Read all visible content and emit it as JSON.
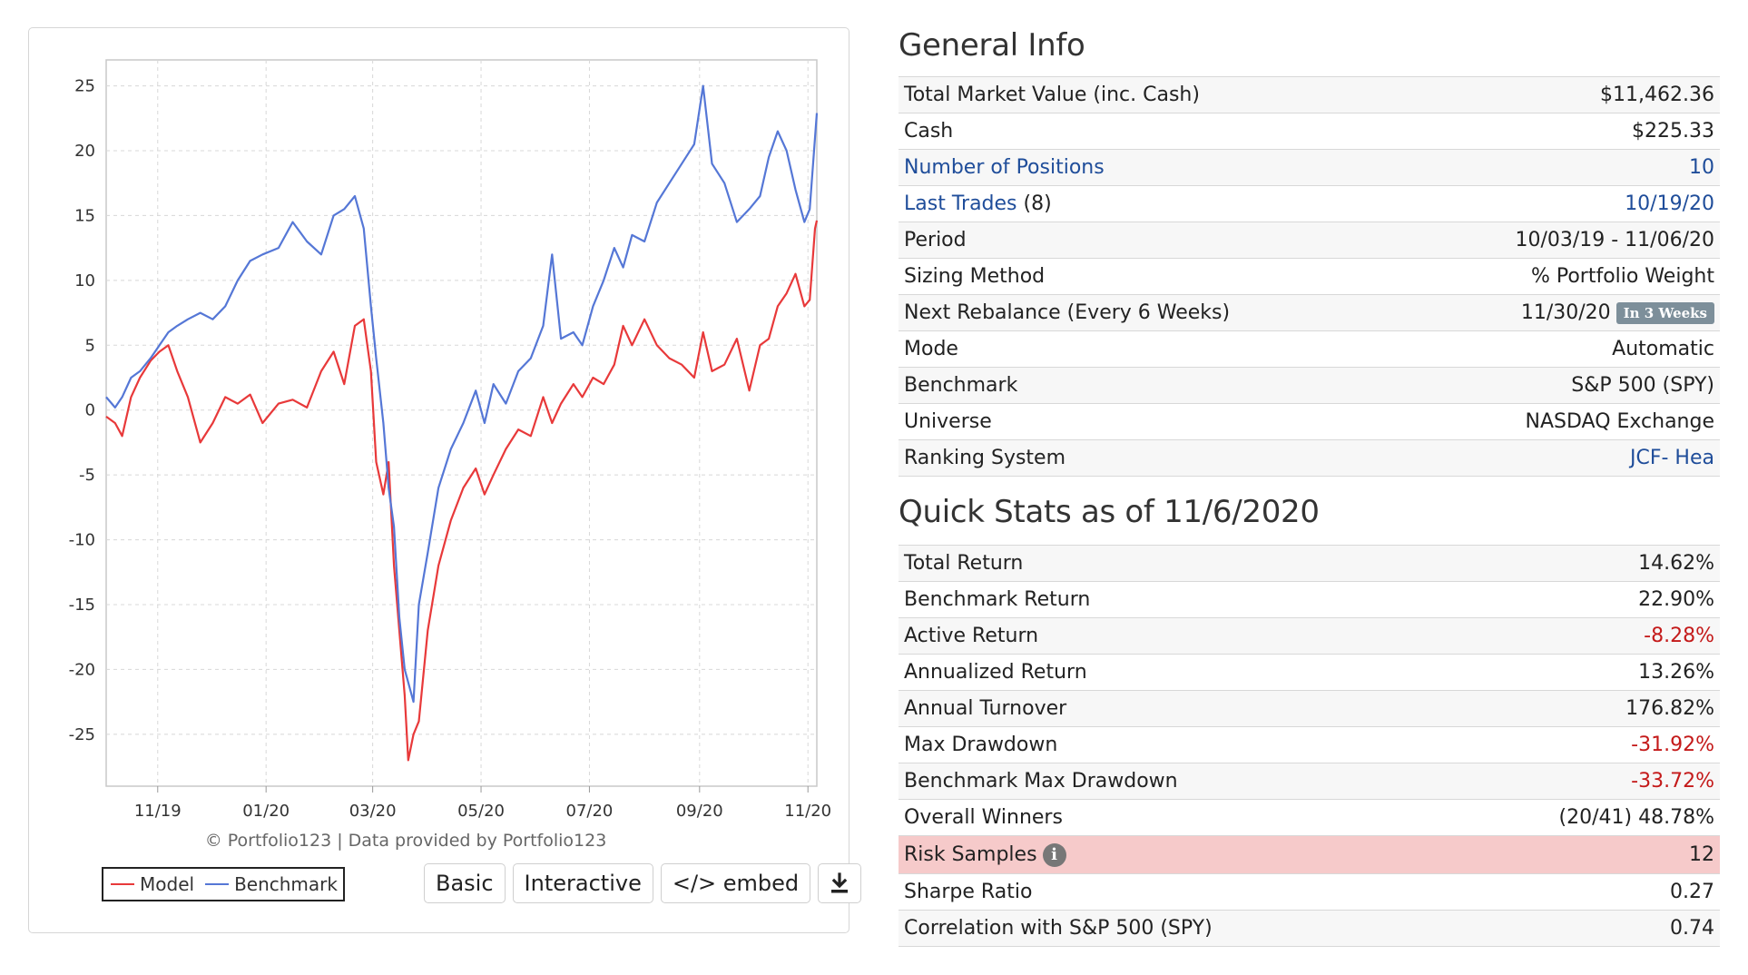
{
  "chart_data": {
    "type": "line",
    "ylim": [
      -29,
      27
    ],
    "y_ticks": [
      25,
      20,
      15,
      10,
      5,
      0,
      -5,
      -10,
      -15,
      -20,
      -25
    ],
    "x_ticks": [
      "11/19",
      "01/20",
      "03/20",
      "05/20",
      "07/20",
      "09/20",
      "11/20"
    ],
    "x_range": [
      "2019-10-03",
      "2020-11-06"
    ],
    "grid": true,
    "legend_position": "bottom-left",
    "series": [
      {
        "name": "Model",
        "color": "#e8393a",
        "points": [
          [
            "2019-10-03",
            -0.5
          ],
          [
            "2019-10-08",
            -1.0
          ],
          [
            "2019-10-12",
            -2.0
          ],
          [
            "2019-10-17",
            1.0
          ],
          [
            "2019-10-22",
            2.5
          ],
          [
            "2019-10-28",
            3.8
          ],
          [
            "2019-11-02",
            4.5
          ],
          [
            "2019-11-07",
            5.0
          ],
          [
            "2019-11-12",
            3.0
          ],
          [
            "2019-11-18",
            1.0
          ],
          [
            "2019-11-25",
            -2.5
          ],
          [
            "2019-12-02",
            -1.0
          ],
          [
            "2019-12-09",
            1.0
          ],
          [
            "2019-12-16",
            0.5
          ],
          [
            "2019-12-23",
            1.2
          ],
          [
            "2019-12-30",
            -1.0
          ],
          [
            "2020-01-08",
            0.5
          ],
          [
            "2020-01-16",
            0.8
          ],
          [
            "2020-01-24",
            0.2
          ],
          [
            "2020-02-01",
            3.0
          ],
          [
            "2020-02-08",
            4.5
          ],
          [
            "2020-02-14",
            2.0
          ],
          [
            "2020-02-20",
            6.5
          ],
          [
            "2020-02-25",
            7.0
          ],
          [
            "2020-02-29",
            3.0
          ],
          [
            "2020-03-03",
            -4.0
          ],
          [
            "2020-03-07",
            -6.5
          ],
          [
            "2020-03-10",
            -4.0
          ],
          [
            "2020-03-13",
            -12.0
          ],
          [
            "2020-03-16",
            -17.0
          ],
          [
            "2020-03-19",
            -22.0
          ],
          [
            "2020-03-21",
            -27.0
          ],
          [
            "2020-03-24",
            -25.0
          ],
          [
            "2020-03-27",
            -24.0
          ],
          [
            "2020-04-01",
            -17.0
          ],
          [
            "2020-04-07",
            -12.0
          ],
          [
            "2020-04-14",
            -8.5
          ],
          [
            "2020-04-21",
            -6.0
          ],
          [
            "2020-04-28",
            -4.5
          ],
          [
            "2020-05-03",
            -6.5
          ],
          [
            "2020-05-08",
            -5.0
          ],
          [
            "2020-05-15",
            -3.0
          ],
          [
            "2020-05-22",
            -1.5
          ],
          [
            "2020-05-29",
            -2.0
          ],
          [
            "2020-06-05",
            1.0
          ],
          [
            "2020-06-10",
            -1.0
          ],
          [
            "2020-06-15",
            0.5
          ],
          [
            "2020-06-22",
            2.0
          ],
          [
            "2020-06-27",
            1.0
          ],
          [
            "2020-07-03",
            2.5
          ],
          [
            "2020-07-09",
            2.0
          ],
          [
            "2020-07-15",
            3.5
          ],
          [
            "2020-07-20",
            6.5
          ],
          [
            "2020-07-25",
            5.0
          ],
          [
            "2020-08-01",
            7.0
          ],
          [
            "2020-08-08",
            5.0
          ],
          [
            "2020-08-15",
            4.0
          ],
          [
            "2020-08-22",
            3.5
          ],
          [
            "2020-08-29",
            2.5
          ],
          [
            "2020-09-03",
            6.0
          ],
          [
            "2020-09-08",
            3.0
          ],
          [
            "2020-09-15",
            3.5
          ],
          [
            "2020-09-22",
            5.5
          ],
          [
            "2020-09-29",
            1.5
          ],
          [
            "2020-10-05",
            5.0
          ],
          [
            "2020-10-10",
            5.5
          ],
          [
            "2020-10-15",
            8.0
          ],
          [
            "2020-10-20",
            9.0
          ],
          [
            "2020-10-25",
            10.5
          ],
          [
            "2020-10-30",
            8.0
          ],
          [
            "2020-11-02",
            8.5
          ],
          [
            "2020-11-05",
            14.0
          ],
          [
            "2020-11-06",
            14.62
          ]
        ]
      },
      {
        "name": "Benchmark",
        "color": "#5577d6",
        "points": [
          [
            "2019-10-03",
            1.0
          ],
          [
            "2019-10-08",
            0.2
          ],
          [
            "2019-10-12",
            1.0
          ],
          [
            "2019-10-17",
            2.5
          ],
          [
            "2019-10-22",
            3.0
          ],
          [
            "2019-10-28",
            4.0
          ],
          [
            "2019-11-02",
            5.0
          ],
          [
            "2019-11-07",
            6.0
          ],
          [
            "2019-11-12",
            6.5
          ],
          [
            "2019-11-18",
            7.0
          ],
          [
            "2019-11-25",
            7.5
          ],
          [
            "2019-12-02",
            7.0
          ],
          [
            "2019-12-09",
            8.0
          ],
          [
            "2019-12-16",
            10.0
          ],
          [
            "2019-12-23",
            11.5
          ],
          [
            "2019-12-30",
            12.0
          ],
          [
            "2020-01-08",
            12.5
          ],
          [
            "2020-01-16",
            14.5
          ],
          [
            "2020-01-24",
            13.0
          ],
          [
            "2020-02-01",
            12.0
          ],
          [
            "2020-02-08",
            15.0
          ],
          [
            "2020-02-14",
            15.5
          ],
          [
            "2020-02-20",
            16.5
          ],
          [
            "2020-02-25",
            14.0
          ],
          [
            "2020-02-29",
            8.0
          ],
          [
            "2020-03-03",
            4.0
          ],
          [
            "2020-03-07",
            -1.0
          ],
          [
            "2020-03-10",
            -6.0
          ],
          [
            "2020-03-13",
            -9.0
          ],
          [
            "2020-03-16",
            -16.0
          ],
          [
            "2020-03-19",
            -20.0
          ],
          [
            "2020-03-21",
            -21.0
          ],
          [
            "2020-03-24",
            -22.5
          ],
          [
            "2020-03-27",
            -15.0
          ],
          [
            "2020-04-01",
            -11.0
          ],
          [
            "2020-04-07",
            -6.0
          ],
          [
            "2020-04-14",
            -3.0
          ],
          [
            "2020-04-21",
            -1.0
          ],
          [
            "2020-04-28",
            1.5
          ],
          [
            "2020-05-03",
            -1.0
          ],
          [
            "2020-05-08",
            2.0
          ],
          [
            "2020-05-15",
            0.5
          ],
          [
            "2020-05-22",
            3.0
          ],
          [
            "2020-05-29",
            4.0
          ],
          [
            "2020-06-05",
            6.5
          ],
          [
            "2020-06-10",
            12.0
          ],
          [
            "2020-06-15",
            5.5
          ],
          [
            "2020-06-22",
            6.0
          ],
          [
            "2020-06-27",
            5.0
          ],
          [
            "2020-07-03",
            8.0
          ],
          [
            "2020-07-09",
            10.0
          ],
          [
            "2020-07-15",
            12.5
          ],
          [
            "2020-07-20",
            11.0
          ],
          [
            "2020-07-25",
            13.5
          ],
          [
            "2020-08-01",
            13.0
          ],
          [
            "2020-08-08",
            16.0
          ],
          [
            "2020-08-15",
            17.5
          ],
          [
            "2020-08-22",
            19.0
          ],
          [
            "2020-08-29",
            20.5
          ],
          [
            "2020-09-03",
            25.0
          ],
          [
            "2020-09-08",
            19.0
          ],
          [
            "2020-09-15",
            17.5
          ],
          [
            "2020-09-22",
            14.5
          ],
          [
            "2020-09-29",
            15.5
          ],
          [
            "2020-10-05",
            16.5
          ],
          [
            "2020-10-10",
            19.5
          ],
          [
            "2020-10-15",
            21.5
          ],
          [
            "2020-10-20",
            20.0
          ],
          [
            "2020-10-25",
            17.0
          ],
          [
            "2020-10-30",
            14.5
          ],
          [
            "2020-11-02",
            15.5
          ],
          [
            "2020-11-05",
            21.0
          ],
          [
            "2020-11-06",
            22.9
          ]
        ]
      }
    ]
  },
  "chart_footer": {
    "credit": "© Portfolio123 | Data provided by Portfolio123",
    "legend_model": "Model",
    "legend_benchmark": "Benchmark",
    "buttons": {
      "basic": "Basic",
      "interactive": "Interactive",
      "embed": "</> embed",
      "download_icon": "download-icon"
    }
  },
  "general_info": {
    "title": "General Info",
    "rows": [
      {
        "label": "Total Market Value (inc. Cash)",
        "value": "$11,462.36"
      },
      {
        "label": "Cash",
        "value": "$225.33"
      },
      {
        "label": "Number of Positions",
        "value": "10"
      },
      {
        "label": "Last Trades",
        "label_suffix": " (8)",
        "value": "10/19/20"
      },
      {
        "label": "Period",
        "value": "10/03/19 - 11/06/20"
      },
      {
        "label": "Sizing Method",
        "value": "% Portfolio Weight"
      },
      {
        "label": "Next Rebalance (Every 6 Weeks)",
        "value": "11/30/20",
        "badge": "In 3 Weeks"
      },
      {
        "label": "Mode",
        "value": "Automatic"
      },
      {
        "label": "Benchmark",
        "value": "S&P 500 (SPY)"
      },
      {
        "label": "Universe",
        "value": "NASDAQ Exchange"
      },
      {
        "label": "Ranking System",
        "value": "JCF- Hea"
      }
    ]
  },
  "quick_stats": {
    "title": "Quick Stats as of 11/6/2020",
    "rows": [
      {
        "label": "Total Return",
        "value": "14.62%"
      },
      {
        "label": "Benchmark Return",
        "value": "22.90%"
      },
      {
        "label": "Active Return",
        "value": "-8.28%"
      },
      {
        "label": "Annualized Return",
        "value": "13.26%"
      },
      {
        "label": "Annual Turnover",
        "value": "176.82%"
      },
      {
        "label": "Max Drawdown",
        "value": "-31.92%"
      },
      {
        "label": "Benchmark Max Drawdown",
        "value": "-33.72%"
      },
      {
        "label": "Overall Winners",
        "value": "(20/41) 48.78%"
      },
      {
        "label": "Risk Samples",
        "value": "12",
        "icon": "info-icon"
      },
      {
        "label": "Sharpe Ratio",
        "value": "0.27"
      },
      {
        "label": "Correlation with S&P 500 (SPY)",
        "value": "0.74"
      }
    ]
  },
  "colors": {
    "link": "#1f4d9a",
    "negative": "#c41a1a",
    "highlight_row": "#f6caca",
    "badge": "#7d8f9a"
  }
}
